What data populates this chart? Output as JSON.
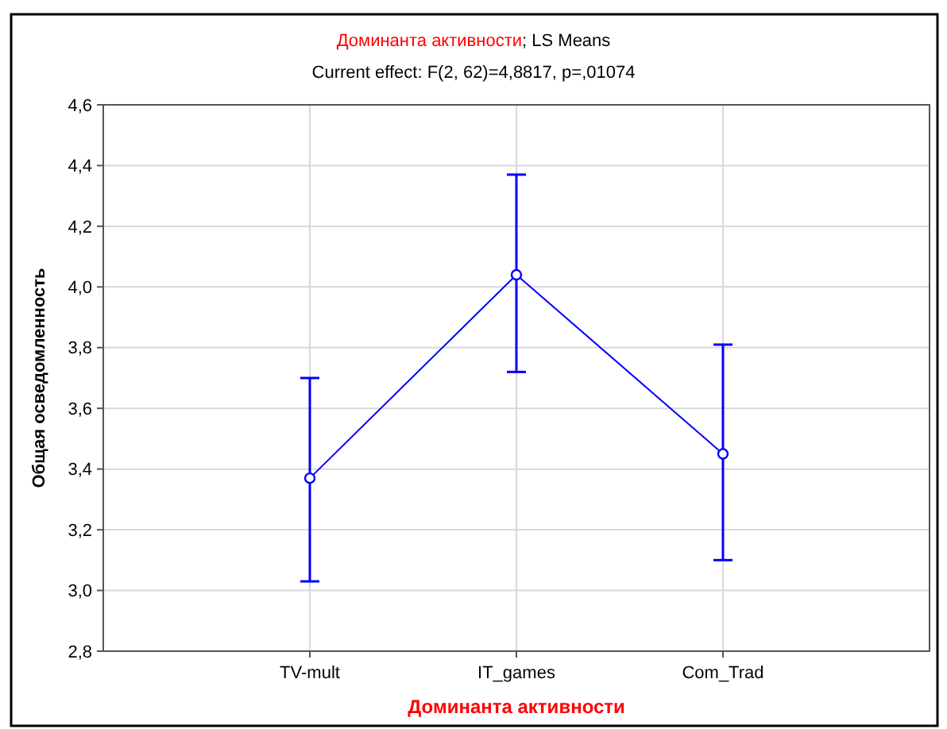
{
  "chart_data": {
    "type": "line",
    "title": "Доминанта активности; LS Means",
    "subtitle": "Current effect: F(2, 62)=4,8817, p=,01074",
    "xlabel": "Доминанта активности",
    "ylabel": "Общая осведомленность",
    "categories": [
      "TV-mult",
      "IT_games",
      "Com_Trad"
    ],
    "series": [
      {
        "color": "#0000ff",
        "values": [
          3.37,
          4.04,
          3.45
        ],
        "errors": [
          [
            3.03,
            3.7
          ],
          [
            3.72,
            4.37
          ],
          [
            3.1,
            3.81
          ]
        ]
      }
    ],
    "ylim": [
      2.8,
      4.6
    ],
    "yticks": [
      {
        "value": 2.8,
        "label": "2,8"
      },
      {
        "value": 3.0,
        "label": "3,0"
      },
      {
        "value": 3.2,
        "label": "3,2"
      },
      {
        "value": 3.4,
        "label": "3,4"
      },
      {
        "value": 3.6,
        "label": "3,6"
      },
      {
        "value": 3.8,
        "label": "3,8"
      },
      {
        "value": 4.0,
        "label": "4,0"
      },
      {
        "value": 4.2,
        "label": "4,2"
      },
      {
        "value": 4.4,
        "label": "4,4"
      },
      {
        "value": 4.6,
        "label": "4,6"
      }
    ],
    "grid": true,
    "marker": "circle",
    "line_style": "solid"
  }
}
